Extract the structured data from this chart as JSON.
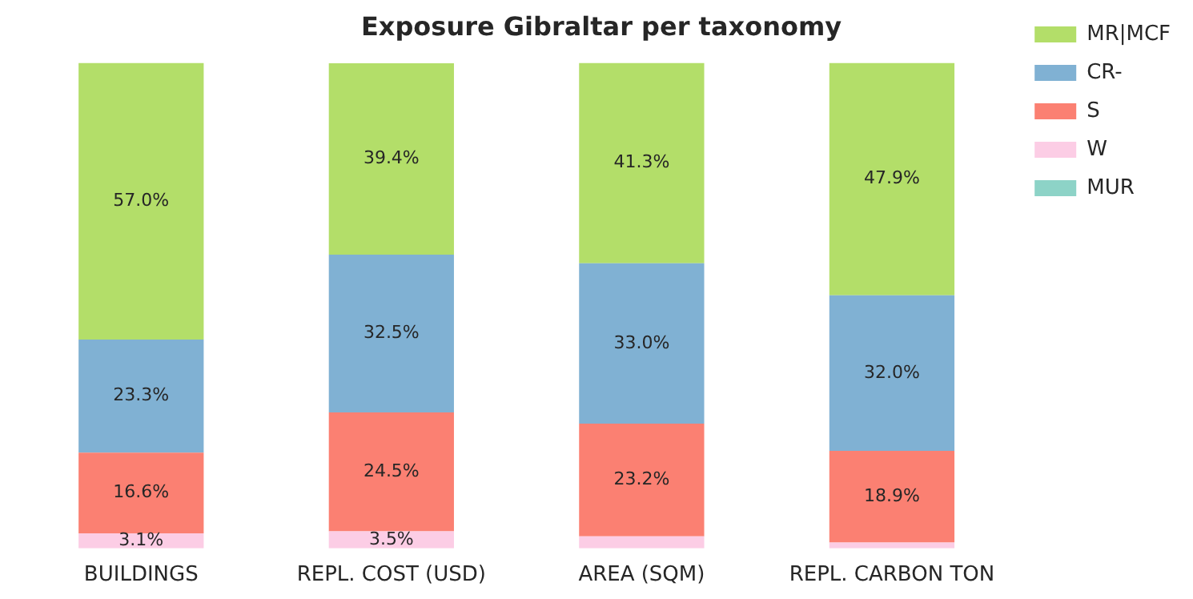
{
  "chart_data": {
    "type": "bar",
    "title": "Exposure Gibraltar per taxonomy",
    "categories": [
      "BUILDINGS",
      "REPL. COST (USD)",
      "AREA (SQM)",
      "REPL. CARBON TON"
    ],
    "stacked": true,
    "legend": "top right",
    "grid": false,
    "tick_labels": "x",
    "series": [
      {
        "name": "MUR",
        "color": "#8dd3c7",
        "values": [
          0,
          0,
          0,
          0
        ],
        "value_labels": [
          null,
          null,
          null,
          null
        ]
      },
      {
        "name": "W",
        "color": "#fccde5",
        "values": [
          3.1,
          3.5,
          2.5,
          1.2
        ],
        "value_labels": [
          "3.1%",
          "3.5%",
          null,
          null
        ]
      },
      {
        "name": "S",
        "color": "#fb8072",
        "values": [
          16.6,
          24.5,
          23.2,
          18.9
        ],
        "value_labels": [
          "16.6%",
          "24.5%",
          "23.2%",
          "18.9%"
        ]
      },
      {
        "name": "CR-",
        "color": "#80b1d3",
        "values": [
          23.3,
          32.5,
          33.0,
          32.0
        ],
        "value_labels": [
          "23.3%",
          "32.5%",
          "33.0%",
          "32.0%"
        ]
      },
      {
        "name": "MR|MCF",
        "color": "#b3de69",
        "values": [
          57.0,
          39.4,
          41.3,
          47.9
        ],
        "value_labels": [
          "57.0%",
          "39.4%",
          "41.3%",
          "47.9%"
        ]
      }
    ]
  }
}
